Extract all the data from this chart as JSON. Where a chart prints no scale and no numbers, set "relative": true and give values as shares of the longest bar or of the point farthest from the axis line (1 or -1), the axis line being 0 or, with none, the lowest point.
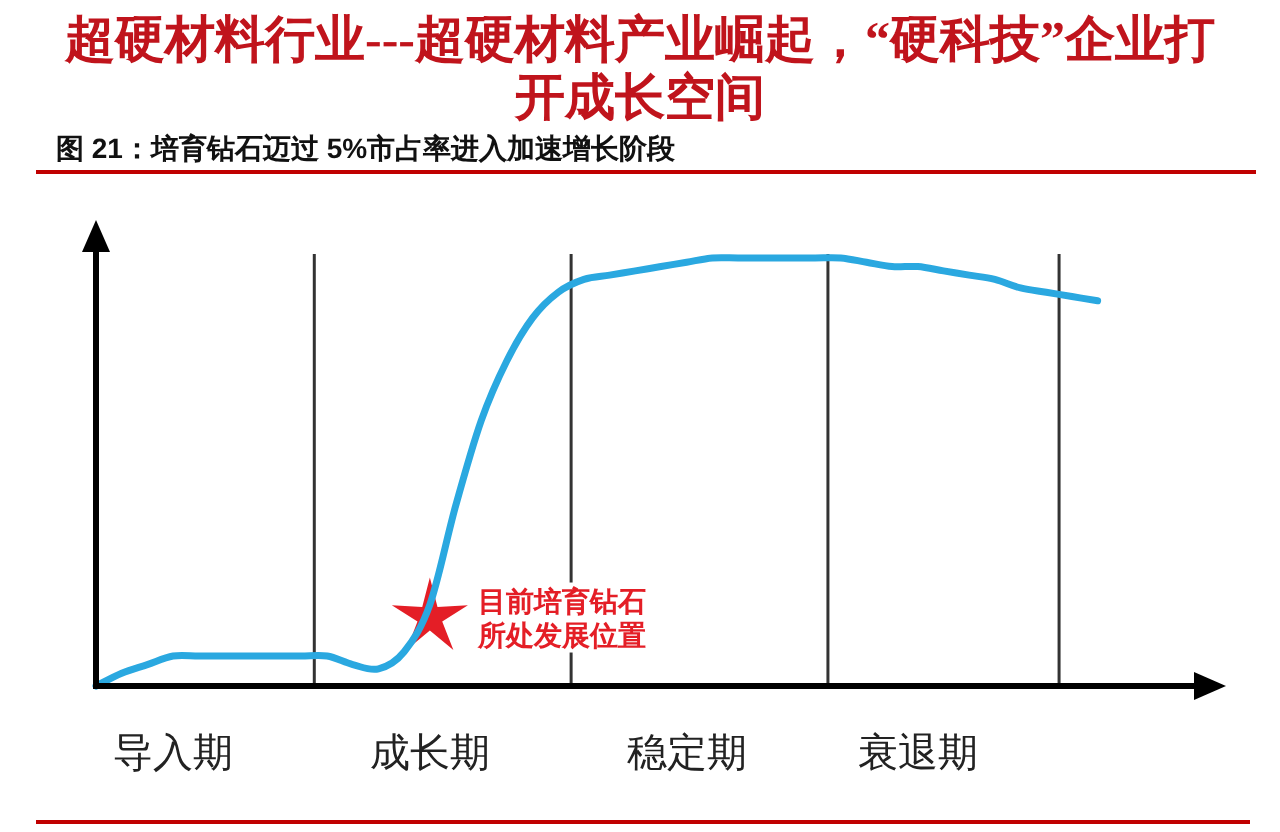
{
  "chart_data": {
    "type": "line",
    "title": "超硬材料行业---超硬材料产业崛起，“硬科技”企业打开成长空间",
    "subtitle": "图 21：培育钻石迈过 5%市占率进入加速增长阶段",
    "relative": true,
    "tick_labels": "x",
    "categories": [
      null,
      null,
      null,
      "导入期",
      null,
      null,
      null,
      null,
      null,
      null,
      null,
      null,
      null,
      "成长期",
      null,
      null,
      null,
      null,
      null,
      null,
      null,
      null,
      null,
      "稳定期",
      null,
      null,
      null,
      null,
      null,
      null,
      null,
      null,
      "衰退期",
      null,
      null,
      null,
      null,
      null,
      null,
      null
    ],
    "series": [
      {
        "color": "#2aa8e0",
        "values": [
          0,
          0.03,
          0.05,
          0.07,
          0.07,
          0.07,
          0.07,
          0.07,
          0.07,
          0.07,
          0.05,
          0.04,
          0.08,
          0.19,
          0.42,
          0.62,
          0.76,
          0.86,
          0.92,
          0.95,
          0.96,
          0.97,
          0.98,
          0.99,
          1.0,
          1.0,
          1.0,
          1.0,
          1.0,
          1.0,
          0.99,
          0.98,
          0.98,
          0.97,
          0.96,
          0.95,
          0.93,
          0.92,
          0.91,
          0.9
        ]
      },
      {
        "type": "scatter",
        "marker": "star",
        "name": "目前培育钻石所处发展位置",
        "color": "#e41e26",
        "values": [
          null,
          null,
          null,
          null,
          null,
          null,
          null,
          null,
          null,
          null,
          null,
          null,
          null,
          0.16,
          null,
          null,
          null,
          null,
          null,
          null,
          null,
          null,
          null,
          null,
          null,
          null,
          null,
          null,
          null,
          null,
          null,
          null,
          null,
          null,
          null,
          null,
          null,
          null,
          null,
          null
        ]
      }
    ]
  }
}
